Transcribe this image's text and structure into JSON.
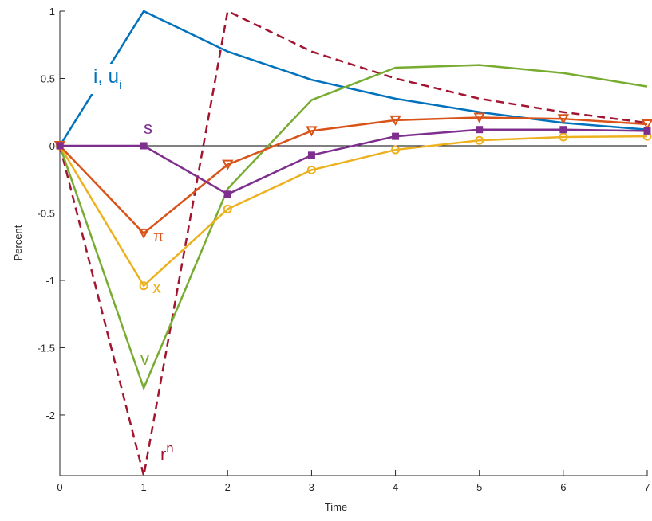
{
  "chart_data": {
    "type": "line",
    "xlabel": "Time",
    "ylabel": "Percent",
    "x": [
      0,
      1,
      2,
      3,
      4,
      5,
      6,
      7
    ],
    "xlim": [
      0,
      7
    ],
    "xticks": [
      0,
      1,
      2,
      3,
      4,
      5,
      6,
      7
    ],
    "ylim": [
      -2.45,
      1
    ],
    "yticks": [
      -2,
      -1.5,
      -1,
      -0.5,
      0,
      0.5,
      1
    ],
    "series": [
      {
        "color": "#0072BD",
        "dash": false,
        "marker": "none",
        "values": [
          0,
          1,
          0.7,
          0.49,
          0.35,
          0.25,
          0.17,
          0.12
        ]
      },
      {
        "color": "#A2142F",
        "dash": true,
        "marker": "none",
        "values": [
          0,
          -2.45,
          1.0,
          0.7,
          0.5,
          0.35,
          0.25,
          0.17
        ]
      },
      {
        "color": "#77AC30",
        "dash": false,
        "marker": "none",
        "values": [
          0,
          -1.8,
          -0.32,
          0.34,
          0.58,
          0.6,
          0.54,
          0.44
        ]
      },
      {
        "color": "#EDB120",
        "dash": false,
        "marker": "circle",
        "values": [
          0,
          -1.04,
          -0.47,
          -0.18,
          -0.03,
          0.04,
          0.065,
          0.07
        ]
      },
      {
        "color": "#D95319",
        "dash": false,
        "marker": "triangle-down",
        "values": [
          0,
          -0.65,
          -0.14,
          0.11,
          0.19,
          0.21,
          0.2,
          0.16
        ]
      },
      {
        "color": "#7E2F8E",
        "dash": false,
        "marker": "square",
        "values": [
          0,
          0,
          -0.36,
          -0.07,
          0.07,
          0.12,
          0.12,
          0.11
        ]
      }
    ],
    "annotations": [
      {
        "text": "i, u",
        "sub": "i",
        "color": "#0072BD"
      },
      {
        "text": "s",
        "color": "#7E2F8E"
      },
      {
        "text": "π",
        "color": "#D95319"
      },
      {
        "text": "x",
        "color": "#EDB120"
      },
      {
        "text": "v",
        "color": "#77AC30"
      },
      {
        "text": "r",
        "sup": "n",
        "color": "#A2142F"
      }
    ]
  }
}
